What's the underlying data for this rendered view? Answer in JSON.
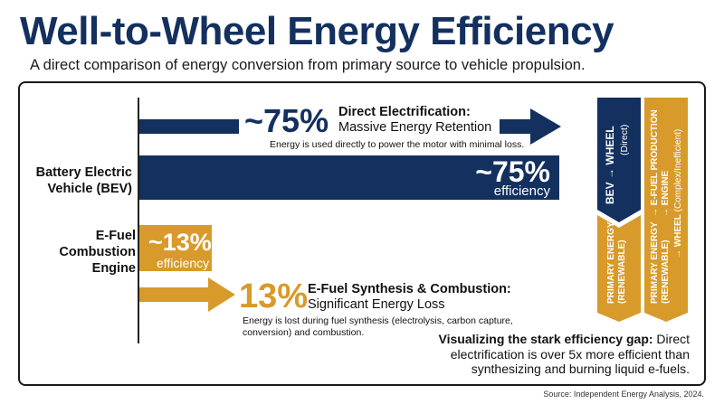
{
  "header": {
    "title": "Well-to-Wheel Energy Efficiency",
    "subtitle": "A direct comparison of energy conversion from primary source to vehicle propulsion."
  },
  "colors": {
    "navy": "#13305f",
    "gold": "#d89a2a",
    "text": "#111111"
  },
  "chart_data": {
    "type": "bar",
    "orientation": "horizontal",
    "categories": [
      "Battery Electric Vehicle (BEV)",
      "E-Fuel Combustion Engine"
    ],
    "values": [
      75,
      13
    ],
    "value_unit": "%",
    "xlim": [
      0,
      100
    ],
    "title": "Well-to-Wheel Energy Efficiency",
    "data_labels": [
      {
        "value": "~75%",
        "unit": "efficiency"
      },
      {
        "value": "~13%",
        "unit": "efficiency"
      }
    ]
  },
  "bev": {
    "label_line1": "Battery Electric",
    "label_line2": "Vehicle (BEV)",
    "big_pct": "~75%",
    "head_line1": "Direct Electrification:",
    "head_line2": "Massive Energy Retention",
    "note": "Energy is used directly to power the motor with minimal loss."
  },
  "efuel": {
    "label_line1": "E-Fuel",
    "label_line2": "Combustion",
    "label_line3": "Engine",
    "big_pct": "13%",
    "head_line1": "E-Fuel Synthesis & Combustion:",
    "head_line2": "Significant Energy Loss",
    "note": "Energy is lost during fuel synthesis (electrolysis, carbon capture, conversion) and combustion."
  },
  "pathways": {
    "bev_main": "BEV",
    "bev_arrow": "→",
    "bev_to": "WHEEL",
    "bev_paren": "(Direct)",
    "bev_primary_line1": "PRIMARY ENERGY",
    "bev_primary_line2": "(RENEWABLE)",
    "efuel_primary_line1": "PRIMARY ENERGY",
    "efuel_primary_line2": "(RENEWABLE)",
    "efuel_stage1_line1": "→ E-FUEL PRODUCTION",
    "efuel_stage1_line2": "→ ENGINE",
    "efuel_stage2_main": "→ WHEEL",
    "efuel_stage2_paren": "(Complex/Inefficient)"
  },
  "callout": {
    "bold": "Visualizing the stark efficiency gap:",
    "text": " Direct electrification is over 5x more efficient than synthesizing and burning liquid e-fuels."
  },
  "source": "Source: Independent Energy Analysis, 2024."
}
